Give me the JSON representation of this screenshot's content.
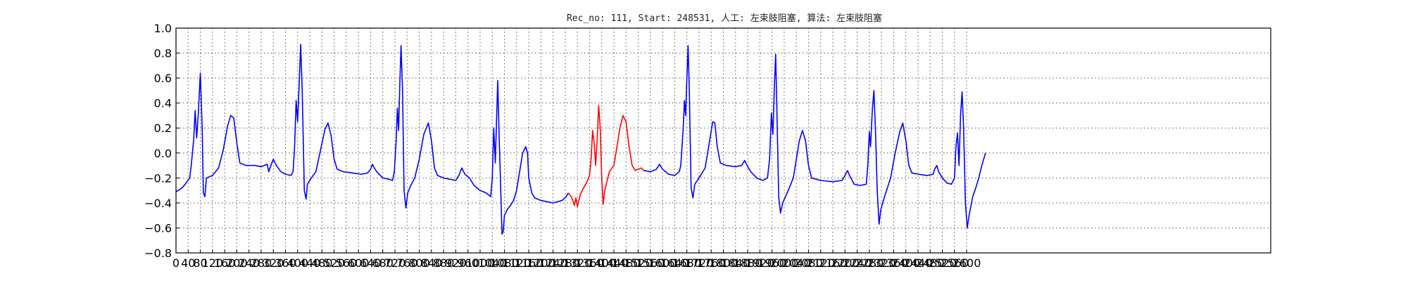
{
  "chart_data": {
    "type": "line",
    "title": "Rec_no: 111, Start: 248531, 人工: 左束肢阻塞, 算法: 左束肢阻塞",
    "xlabel": "",
    "ylabel": "",
    "xlim": [
      0,
      3600
    ],
    "ylim": [
      -0.8,
      1.0
    ],
    "grid": true,
    "y_ticks": [
      -0.8,
      -0.6,
      -0.4,
      -0.2,
      0.0,
      0.2,
      0.4,
      0.6,
      0.8,
      1.0
    ],
    "y_tick_labels": [
      "−0.8",
      "−0.6",
      "−0.4",
      "−0.2",
      "0.0",
      "0.2",
      "0.4",
      "0.6",
      "0.8",
      "1.0"
    ],
    "x_ticks": [
      0,
      40,
      80,
      120,
      160,
      200,
      240,
      280,
      320,
      360,
      400,
      440,
      480,
      520,
      560,
      600,
      640,
      680,
      720,
      760,
      800,
      840,
      880,
      920,
      960,
      1000,
      1040,
      1080,
      1120,
      1160,
      1200,
      1240,
      1280,
      1320,
      1360,
      1400,
      1440,
      1480,
      1520,
      1560,
      1600,
      1640,
      1680,
      1720,
      1760,
      1800,
      1840,
      1880,
      1920,
      1960,
      2000,
      2040,
      2080,
      2120,
      2160,
      2200,
      2240,
      2280,
      2320,
      2360,
      2400,
      2440,
      2480,
      2520,
      2560,
      2600
    ],
    "series": [
      {
        "segment": "normal-1",
        "color": "#0000ff",
        "points": [
          [
            0,
            -0.31
          ],
          [
            20,
            -0.28
          ],
          [
            30,
            -0.25
          ],
          [
            45,
            -0.2
          ],
          [
            50,
            -0.1
          ],
          [
            58,
            0.1
          ],
          [
            63,
            0.34
          ],
          [
            68,
            0.12
          ],
          [
            73,
            0.3
          ],
          [
            80,
            0.64
          ],
          [
            86,
            0.2
          ],
          [
            90,
            -0.32
          ],
          [
            95,
            -0.35
          ],
          [
            100,
            -0.2
          ],
          [
            120,
            -0.18
          ],
          [
            140,
            -0.12
          ],
          [
            155,
            0.02
          ],
          [
            170,
            0.22
          ],
          [
            180,
            0.3
          ],
          [
            190,
            0.28
          ],
          [
            200,
            0.08
          ],
          [
            210,
            -0.08
          ],
          [
            230,
            -0.1
          ],
          [
            260,
            -0.1
          ],
          [
            280,
            -0.11
          ],
          [
            300,
            -0.09
          ],
          [
            305,
            -0.15
          ],
          [
            312,
            -0.1
          ],
          [
            320,
            -0.05
          ],
          [
            330,
            -0.1
          ],
          [
            345,
            -0.15
          ],
          [
            360,
            -0.17
          ],
          [
            378,
            -0.18
          ],
          [
            385,
            -0.15
          ],
          [
            390,
            0.05
          ],
          [
            395,
            0.42
          ],
          [
            400,
            0.25
          ],
          [
            405,
            0.55
          ],
          [
            410,
            0.87
          ],
          [
            415,
            0.5
          ],
          [
            422,
            -0.3
          ],
          [
            428,
            -0.37
          ],
          [
            432,
            -0.25
          ],
          [
            445,
            -0.2
          ],
          [
            460,
            -0.15
          ],
          [
            475,
            0.02
          ],
          [
            490,
            0.19
          ],
          [
            500,
            0.24
          ],
          [
            510,
            0.14
          ],
          [
            520,
            -0.05
          ],
          [
            530,
            -0.13
          ],
          [
            550,
            -0.15
          ],
          [
            580,
            -0.16
          ],
          [
            610,
            -0.17
          ],
          [
            630,
            -0.16
          ],
          [
            640,
            -0.13
          ],
          [
            646,
            -0.09
          ],
          [
            652,
            -0.12
          ],
          [
            660,
            -0.15
          ],
          [
            680,
            -0.2
          ],
          [
            700,
            -0.21
          ],
          [
            712,
            -0.22
          ],
          [
            718,
            -0.15
          ],
          [
            724,
            0.1
          ],
          [
            728,
            0.36
          ],
          [
            732,
            0.18
          ],
          [
            736,
            0.55
          ],
          [
            740,
            0.86
          ],
          [
            745,
            0.5
          ],
          [
            750,
            -0.3
          ],
          [
            756,
            -0.44
          ],
          [
            762,
            -0.32
          ],
          [
            772,
            -0.26
          ],
          [
            785,
            -0.2
          ],
          [
            800,
            -0.05
          ],
          [
            815,
            0.15
          ],
          [
            830,
            0.24
          ],
          [
            840,
            0.1
          ],
          [
            850,
            -0.12
          ],
          [
            860,
            -0.18
          ],
          [
            880,
            -0.2
          ],
          [
            900,
            -0.21
          ],
          [
            920,
            -0.22
          ],
          [
            930,
            -0.18
          ],
          [
            940,
            -0.12
          ],
          [
            950,
            -0.17
          ],
          [
            965,
            -0.2
          ],
          [
            980,
            -0.26
          ],
          [
            1000,
            -0.3
          ],
          [
            1020,
            -0.32
          ],
          [
            1035,
            -0.35
          ],
          [
            1040,
            -0.2
          ],
          [
            1045,
            0.2
          ],
          [
            1050,
            -0.08
          ],
          [
            1058,
            0.58
          ],
          [
            1063,
            0.1
          ],
          [
            1068,
            -0.3
          ],
          [
            1072,
            -0.65
          ],
          [
            1076,
            -0.63
          ],
          [
            1080,
            -0.5
          ],
          [
            1090,
            -0.45
          ],
          [
            1100,
            -0.42
          ],
          [
            1110,
            -0.38
          ],
          [
            1120,
            -0.3
          ],
          [
            1130,
            -0.15
          ],
          [
            1140,
            0.0
          ],
          [
            1150,
            0.05
          ],
          [
            1156,
            0.0
          ],
          [
            1160,
            -0.2
          ],
          [
            1170,
            -0.32
          ],
          [
            1180,
            -0.36
          ],
          [
            1200,
            -0.38
          ],
          [
            1240,
            -0.4
          ],
          [
            1270,
            -0.38
          ],
          [
            1283,
            -0.35
          ],
          [
            1290,
            -0.32
          ]
        ]
      },
      {
        "segment": "highlighted",
        "color": "#ff0000",
        "points": [
          [
            1290,
            -0.32
          ],
          [
            1300,
            -0.35
          ],
          [
            1305,
            -0.38
          ],
          [
            1310,
            -0.42
          ],
          [
            1315,
            -0.36
          ],
          [
            1320,
            -0.43
          ],
          [
            1325,
            -0.38
          ],
          [
            1330,
            -0.33
          ],
          [
            1340,
            -0.28
          ],
          [
            1350,
            -0.24
          ],
          [
            1360,
            -0.18
          ],
          [
            1365,
            -0.05
          ],
          [
            1370,
            0.18
          ],
          [
            1375,
            0.08
          ],
          [
            1380,
            -0.1
          ],
          [
            1385,
            0.1
          ],
          [
            1390,
            0.38
          ],
          [
            1395,
            0.2
          ],
          [
            1400,
            -0.2
          ],
          [
            1405,
            -0.41
          ],
          [
            1410,
            -0.3
          ],
          [
            1415,
            -0.25
          ],
          [
            1425,
            -0.15
          ],
          [
            1440,
            -0.1
          ],
          [
            1450,
            0.05
          ],
          [
            1460,
            0.2
          ],
          [
            1470,
            0.3
          ],
          [
            1480,
            0.25
          ],
          [
            1490,
            0.05
          ],
          [
            1500,
            -0.1
          ],
          [
            1510,
            -0.14
          ],
          [
            1520,
            -0.13
          ],
          [
            1530,
            -0.12
          ],
          [
            1538,
            -0.14
          ]
        ]
      },
      {
        "segment": "normal-2",
        "color": "#0000ff",
        "points": [
          [
            1538,
            -0.14
          ],
          [
            1560,
            -0.15
          ],
          [
            1580,
            -0.13
          ],
          [
            1590,
            -0.09
          ],
          [
            1600,
            -0.13
          ],
          [
            1620,
            -0.17
          ],
          [
            1640,
            -0.18
          ],
          [
            1655,
            -0.15
          ],
          [
            1660,
            -0.1
          ],
          [
            1668,
            0.2
          ],
          [
            1672,
            0.42
          ],
          [
            1676,
            0.3
          ],
          [
            1680,
            0.6
          ],
          [
            1684,
            0.86
          ],
          [
            1688,
            0.5
          ],
          [
            1694,
            -0.28
          ],
          [
            1700,
            -0.36
          ],
          [
            1706,
            -0.25
          ],
          [
            1720,
            -0.2
          ],
          [
            1740,
            -0.12
          ],
          [
            1755,
            0.1
          ],
          [
            1765,
            0.25
          ],
          [
            1772,
            0.24
          ],
          [
            1780,
            0.05
          ],
          [
            1790,
            -0.08
          ],
          [
            1810,
            -0.1
          ],
          [
            1840,
            -0.11
          ],
          [
            1860,
            -0.1
          ],
          [
            1870,
            -0.06
          ],
          [
            1878,
            -0.1
          ],
          [
            1890,
            -0.15
          ],
          [
            1910,
            -0.2
          ],
          [
            1930,
            -0.22
          ],
          [
            1945,
            -0.2
          ],
          [
            1952,
            -0.05
          ],
          [
            1958,
            0.32
          ],
          [
            1963,
            0.15
          ],
          [
            1968,
            0.55
          ],
          [
            1972,
            0.79
          ],
          [
            1976,
            0.35
          ],
          [
            1982,
            -0.35
          ],
          [
            1988,
            -0.48
          ],
          [
            1995,
            -0.4
          ],
          [
            2010,
            -0.32
          ],
          [
            2030,
            -0.2
          ],
          [
            2040,
            -0.05
          ],
          [
            2050,
            0.1
          ],
          [
            2060,
            0.18
          ],
          [
            2070,
            0.1
          ],
          [
            2080,
            -0.1
          ],
          [
            2090,
            -0.2
          ],
          [
            2120,
            -0.22
          ],
          [
            2160,
            -0.23
          ],
          [
            2190,
            -0.22
          ],
          [
            2200,
            -0.18
          ],
          [
            2208,
            -0.14
          ],
          [
            2215,
            -0.18
          ],
          [
            2230,
            -0.25
          ],
          [
            2250,
            -0.26
          ],
          [
            2270,
            -0.25
          ],
          [
            2275,
            -0.1
          ],
          [
            2280,
            0.17
          ],
          [
            2284,
            0.05
          ],
          [
            2290,
            0.35
          ],
          [
            2295,
            0.5
          ],
          [
            2300,
            0.2
          ],
          [
            2306,
            -0.3
          ],
          [
            2312,
            -0.57
          ],
          [
            2318,
            -0.45
          ],
          [
            2330,
            -0.35
          ],
          [
            2350,
            -0.2
          ],
          [
            2365,
            0.0
          ],
          [
            2380,
            0.17
          ],
          [
            2390,
            0.24
          ],
          [
            2400,
            0.1
          ],
          [
            2410,
            -0.1
          ],
          [
            2420,
            -0.16
          ],
          [
            2440,
            -0.17
          ],
          [
            2470,
            -0.18
          ],
          [
            2490,
            -0.17
          ],
          [
            2495,
            -0.13
          ],
          [
            2502,
            -0.1
          ],
          [
            2508,
            -0.15
          ],
          [
            2520,
            -0.2
          ],
          [
            2535,
            -0.24
          ],
          [
            2550,
            -0.25
          ],
          [
            2560,
            -0.2
          ],
          [
            2565,
            0.05
          ],
          [
            2570,
            0.16
          ],
          [
            2575,
            -0.1
          ],
          [
            2580,
            0.3
          ],
          [
            2585,
            0.49
          ],
          [
            2590,
            0.2
          ],
          [
            2596,
            -0.4
          ],
          [
            2602,
            -0.6
          ],
          [
            2608,
            -0.5
          ],
          [
            2620,
            -0.35
          ],
          [
            2630,
            -0.28
          ],
          [
            2640,
            -0.2
          ],
          [
            2650,
            -0.1
          ],
          [
            2656,
            -0.05
          ],
          [
            2662,
            0.0
          ]
        ]
      }
    ]
  }
}
